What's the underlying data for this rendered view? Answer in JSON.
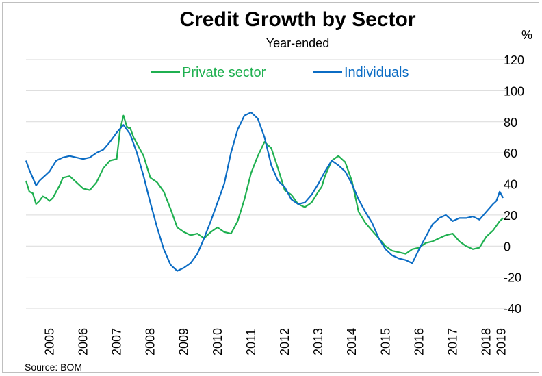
{
  "chart_data": {
    "type": "line",
    "title": "Credit Growth by Sector",
    "subtitle": "Year-ended",
    "unit": "%",
    "source": "Source: BOM",
    "ylim": [
      -40,
      120
    ],
    "y_ticks": [
      "-40",
      "-20",
      "0",
      "20",
      "40",
      "60",
      "80",
      "100",
      "120"
    ],
    "x_ticks": [
      "2005",
      "2006",
      "2007",
      "2008",
      "2009",
      "2010",
      "2011",
      "2012",
      "2013",
      "2014",
      "2015",
      "2016",
      "2017",
      "2018",
      "2019"
    ],
    "x_tick_positions": [
      2005,
      2006,
      2007,
      2008,
      2009,
      2010,
      2011,
      2012,
      2013,
      2014,
      2015,
      2016,
      2017,
      2018,
      2018.45
    ],
    "xlim": [
      2004.3,
      2018.6
    ],
    "grid": true,
    "legend": "top-center",
    "series": [
      {
        "name": "Private sector",
        "color": "#1fb050",
        "x": [
          2004.3,
          2004.4,
          2004.5,
          2004.6,
          2004.7,
          2004.8,
          2004.9,
          2005.0,
          2005.1,
          2005.2,
          2005.3,
          2005.4,
          2005.6,
          2005.8,
          2006.0,
          2006.2,
          2006.4,
          2006.6,
          2006.8,
          2007.0,
          2007.1,
          2007.2,
          2007.3,
          2007.35,
          2007.4,
          2007.5,
          2007.6,
          2007.8,
          2008.0,
          2008.2,
          2008.4,
          2008.6,
          2008.8,
          2009.0,
          2009.2,
          2009.4,
          2009.6,
          2009.8,
          2010.0,
          2010.2,
          2010.4,
          2010.6,
          2010.8,
          2011.0,
          2011.2,
          2011.4,
          2011.6,
          2011.8,
          2012.0,
          2012.2,
          2012.4,
          2012.6,
          2012.8,
          2013.0,
          2013.1,
          2013.2,
          2013.4,
          2013.6,
          2013.8,
          2014.0,
          2014.2,
          2014.4,
          2014.6,
          2014.8,
          2015.0,
          2015.2,
          2015.4,
          2015.6,
          2015.8,
          2016.0,
          2016.2,
          2016.4,
          2016.6,
          2016.8,
          2017.0,
          2017.2,
          2017.4,
          2017.6,
          2017.8,
          2018.0,
          2018.2,
          2018.4,
          2018.5
        ],
        "values": [
          42,
          35,
          34,
          27,
          29,
          32,
          31,
          29,
          31,
          35,
          39,
          44,
          45,
          41,
          37,
          36,
          41,
          50,
          55,
          56,
          75,
          84,
          77,
          76,
          76,
          70,
          66,
          58,
          44,
          41,
          35,
          24,
          12,
          9,
          7,
          8,
          5,
          9,
          12,
          9,
          8,
          16,
          30,
          47,
          58,
          67,
          63,
          50,
          36,
          33,
          27,
          25,
          28,
          35,
          38,
          45,
          55,
          58,
          54,
          42,
          22,
          15,
          10,
          5,
          0,
          -3,
          -4,
          -5,
          -2,
          -1,
          2,
          3,
          5,
          7,
          8,
          3,
          0,
          -2,
          -1,
          6,
          10,
          16,
          18
        ]
      },
      {
        "name": "Individuals",
        "color": "#0b6cc4",
        "x": [
          2004.3,
          2004.4,
          2004.5,
          2004.6,
          2004.7,
          2004.8,
          2004.9,
          2005.0,
          2005.2,
          2005.4,
          2005.6,
          2005.8,
          2006.0,
          2006.2,
          2006.4,
          2006.6,
          2006.8,
          2007.0,
          2007.2,
          2007.4,
          2007.6,
          2007.8,
          2008.0,
          2008.2,
          2008.4,
          2008.6,
          2008.8,
          2009.0,
          2009.2,
          2009.4,
          2009.6,
          2009.8,
          2010.0,
          2010.2,
          2010.4,
          2010.6,
          2010.8,
          2011.0,
          2011.2,
          2011.4,
          2011.6,
          2011.8,
          2012.0,
          2012.2,
          2012.4,
          2012.6,
          2012.8,
          2013.0,
          2013.2,
          2013.4,
          2013.6,
          2013.8,
          2014.0,
          2014.2,
          2014.4,
          2014.6,
          2014.8,
          2015.0,
          2015.2,
          2015.4,
          2015.6,
          2015.8,
          2016.0,
          2016.2,
          2016.4,
          2016.6,
          2016.8,
          2017.0,
          2017.2,
          2017.4,
          2017.6,
          2017.8,
          2018.0,
          2018.2,
          2018.3,
          2018.4,
          2018.5
        ],
        "values": [
          55,
          49,
          44,
          39,
          42,
          44,
          46,
          48,
          55,
          57,
          58,
          57,
          56,
          57,
          60,
          62,
          67,
          73,
          78,
          72,
          60,
          45,
          28,
          12,
          -2,
          -12,
          -16,
          -14,
          -11,
          -5,
          5,
          16,
          28,
          40,
          60,
          75,
          84,
          86,
          82,
          70,
          52,
          42,
          38,
          30,
          27,
          28,
          33,
          40,
          48,
          55,
          52,
          48,
          40,
          30,
          22,
          15,
          5,
          -2,
          -6,
          -8,
          -9,
          -11,
          -2,
          6,
          14,
          18,
          20,
          16,
          18,
          18,
          19,
          17,
          22,
          27,
          29,
          35,
          31
        ]
      }
    ]
  }
}
